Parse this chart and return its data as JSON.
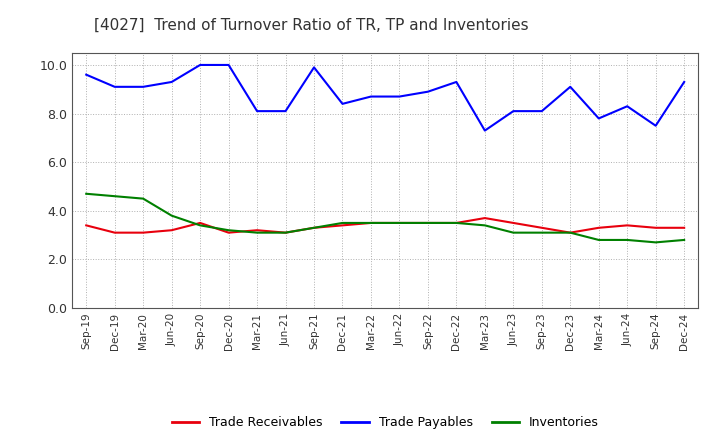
{
  "title": "[4027]  Trend of Turnover Ratio of TR, TP and Inventories",
  "x_labels": [
    "Sep-19",
    "Dec-19",
    "Mar-20",
    "Jun-20",
    "Sep-20",
    "Dec-20",
    "Mar-21",
    "Jun-21",
    "Sep-21",
    "Dec-21",
    "Mar-22",
    "Jun-22",
    "Sep-22",
    "Dec-22",
    "Mar-23",
    "Jun-23",
    "Sep-23",
    "Dec-23",
    "Mar-24",
    "Jun-24",
    "Sep-24",
    "Dec-24"
  ],
  "trade_receivables": [
    3.4,
    3.1,
    3.1,
    3.2,
    3.5,
    3.1,
    3.2,
    3.1,
    3.3,
    3.4,
    3.5,
    3.5,
    3.5,
    3.5,
    3.7,
    3.5,
    3.3,
    3.1,
    3.3,
    3.4,
    3.3,
    3.3
  ],
  "trade_payables": [
    9.6,
    9.1,
    9.1,
    9.3,
    10.0,
    10.0,
    8.1,
    8.1,
    9.9,
    8.4,
    8.7,
    8.7,
    8.9,
    9.3,
    7.3,
    8.1,
    8.1,
    9.1,
    7.8,
    8.3,
    7.5,
    9.3
  ],
  "inventories": [
    4.7,
    4.6,
    4.5,
    3.8,
    3.4,
    3.2,
    3.1,
    3.1,
    3.3,
    3.5,
    3.5,
    3.5,
    3.5,
    3.5,
    3.4,
    3.1,
    3.1,
    3.1,
    2.8,
    2.8,
    2.7,
    2.8
  ],
  "ylim": [
    0.0,
    10.5
  ],
  "yticks": [
    0.0,
    2.0,
    4.0,
    6.0,
    8.0,
    10.0
  ],
  "color_tr": "#e8000d",
  "color_tp": "#0000ff",
  "color_inv": "#008000",
  "background_color": "#ffffff",
  "grid_color": "#b0b0b0",
  "legend_labels": [
    "Trade Receivables",
    "Trade Payables",
    "Inventories"
  ]
}
